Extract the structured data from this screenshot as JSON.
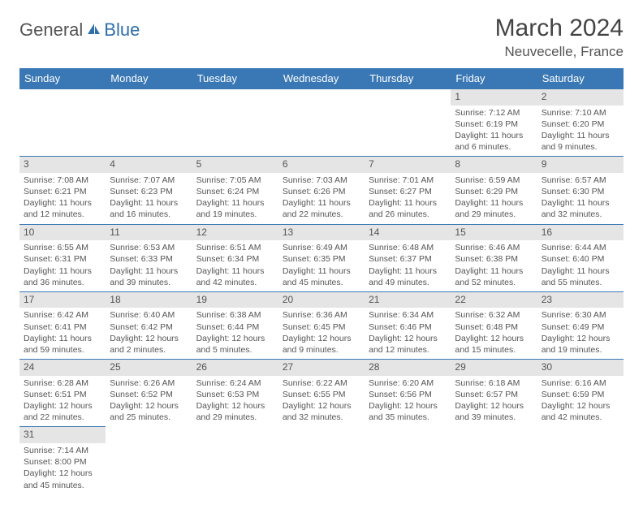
{
  "logo": {
    "part1": "General",
    "part2": "Blue"
  },
  "title": "March 2024",
  "location": "Neuvecelle, France",
  "columns": [
    "Sunday",
    "Monday",
    "Tuesday",
    "Wednesday",
    "Thursday",
    "Friday",
    "Saturday"
  ],
  "colors": {
    "header_bg": "#3a78b5",
    "header_fg": "#ffffff",
    "cell_border": "#3a78b5",
    "daynum_bg": "#e5e5e5",
    "text": "#555555",
    "logo_blue": "#2f6fab"
  },
  "weeks": [
    [
      null,
      null,
      null,
      null,
      null,
      {
        "d": "1",
        "sr": "7:12 AM",
        "ss": "6:19 PM",
        "dl": "11 hours and 6 minutes."
      },
      {
        "d": "2",
        "sr": "7:10 AM",
        "ss": "6:20 PM",
        "dl": "11 hours and 9 minutes."
      }
    ],
    [
      {
        "d": "3",
        "sr": "7:08 AM",
        "ss": "6:21 PM",
        "dl": "11 hours and 12 minutes."
      },
      {
        "d": "4",
        "sr": "7:07 AM",
        "ss": "6:23 PM",
        "dl": "11 hours and 16 minutes."
      },
      {
        "d": "5",
        "sr": "7:05 AM",
        "ss": "6:24 PM",
        "dl": "11 hours and 19 minutes."
      },
      {
        "d": "6",
        "sr": "7:03 AM",
        "ss": "6:26 PM",
        "dl": "11 hours and 22 minutes."
      },
      {
        "d": "7",
        "sr": "7:01 AM",
        "ss": "6:27 PM",
        "dl": "11 hours and 26 minutes."
      },
      {
        "d": "8",
        "sr": "6:59 AM",
        "ss": "6:29 PM",
        "dl": "11 hours and 29 minutes."
      },
      {
        "d": "9",
        "sr": "6:57 AM",
        "ss": "6:30 PM",
        "dl": "11 hours and 32 minutes."
      }
    ],
    [
      {
        "d": "10",
        "sr": "6:55 AM",
        "ss": "6:31 PM",
        "dl": "11 hours and 36 minutes."
      },
      {
        "d": "11",
        "sr": "6:53 AM",
        "ss": "6:33 PM",
        "dl": "11 hours and 39 minutes."
      },
      {
        "d": "12",
        "sr": "6:51 AM",
        "ss": "6:34 PM",
        "dl": "11 hours and 42 minutes."
      },
      {
        "d": "13",
        "sr": "6:49 AM",
        "ss": "6:35 PM",
        "dl": "11 hours and 45 minutes."
      },
      {
        "d": "14",
        "sr": "6:48 AM",
        "ss": "6:37 PM",
        "dl": "11 hours and 49 minutes."
      },
      {
        "d": "15",
        "sr": "6:46 AM",
        "ss": "6:38 PM",
        "dl": "11 hours and 52 minutes."
      },
      {
        "d": "16",
        "sr": "6:44 AM",
        "ss": "6:40 PM",
        "dl": "11 hours and 55 minutes."
      }
    ],
    [
      {
        "d": "17",
        "sr": "6:42 AM",
        "ss": "6:41 PM",
        "dl": "11 hours and 59 minutes."
      },
      {
        "d": "18",
        "sr": "6:40 AM",
        "ss": "6:42 PM",
        "dl": "12 hours and 2 minutes."
      },
      {
        "d": "19",
        "sr": "6:38 AM",
        "ss": "6:44 PM",
        "dl": "12 hours and 5 minutes."
      },
      {
        "d": "20",
        "sr": "6:36 AM",
        "ss": "6:45 PM",
        "dl": "12 hours and 9 minutes."
      },
      {
        "d": "21",
        "sr": "6:34 AM",
        "ss": "6:46 PM",
        "dl": "12 hours and 12 minutes."
      },
      {
        "d": "22",
        "sr": "6:32 AM",
        "ss": "6:48 PM",
        "dl": "12 hours and 15 minutes."
      },
      {
        "d": "23",
        "sr": "6:30 AM",
        "ss": "6:49 PM",
        "dl": "12 hours and 19 minutes."
      }
    ],
    [
      {
        "d": "24",
        "sr": "6:28 AM",
        "ss": "6:51 PM",
        "dl": "12 hours and 22 minutes."
      },
      {
        "d": "25",
        "sr": "6:26 AM",
        "ss": "6:52 PM",
        "dl": "12 hours and 25 minutes."
      },
      {
        "d": "26",
        "sr": "6:24 AM",
        "ss": "6:53 PM",
        "dl": "12 hours and 29 minutes."
      },
      {
        "d": "27",
        "sr": "6:22 AM",
        "ss": "6:55 PM",
        "dl": "12 hours and 32 minutes."
      },
      {
        "d": "28",
        "sr": "6:20 AM",
        "ss": "6:56 PM",
        "dl": "12 hours and 35 minutes."
      },
      {
        "d": "29",
        "sr": "6:18 AM",
        "ss": "6:57 PM",
        "dl": "12 hours and 39 minutes."
      },
      {
        "d": "30",
        "sr": "6:16 AM",
        "ss": "6:59 PM",
        "dl": "12 hours and 42 minutes."
      }
    ],
    [
      {
        "d": "31",
        "sr": "7:14 AM",
        "ss": "8:00 PM",
        "dl": "12 hours and 45 minutes."
      },
      null,
      null,
      null,
      null,
      null,
      null
    ]
  ],
  "labels": {
    "sunrise": "Sunrise:",
    "sunset": "Sunset:",
    "daylight": "Daylight:"
  }
}
